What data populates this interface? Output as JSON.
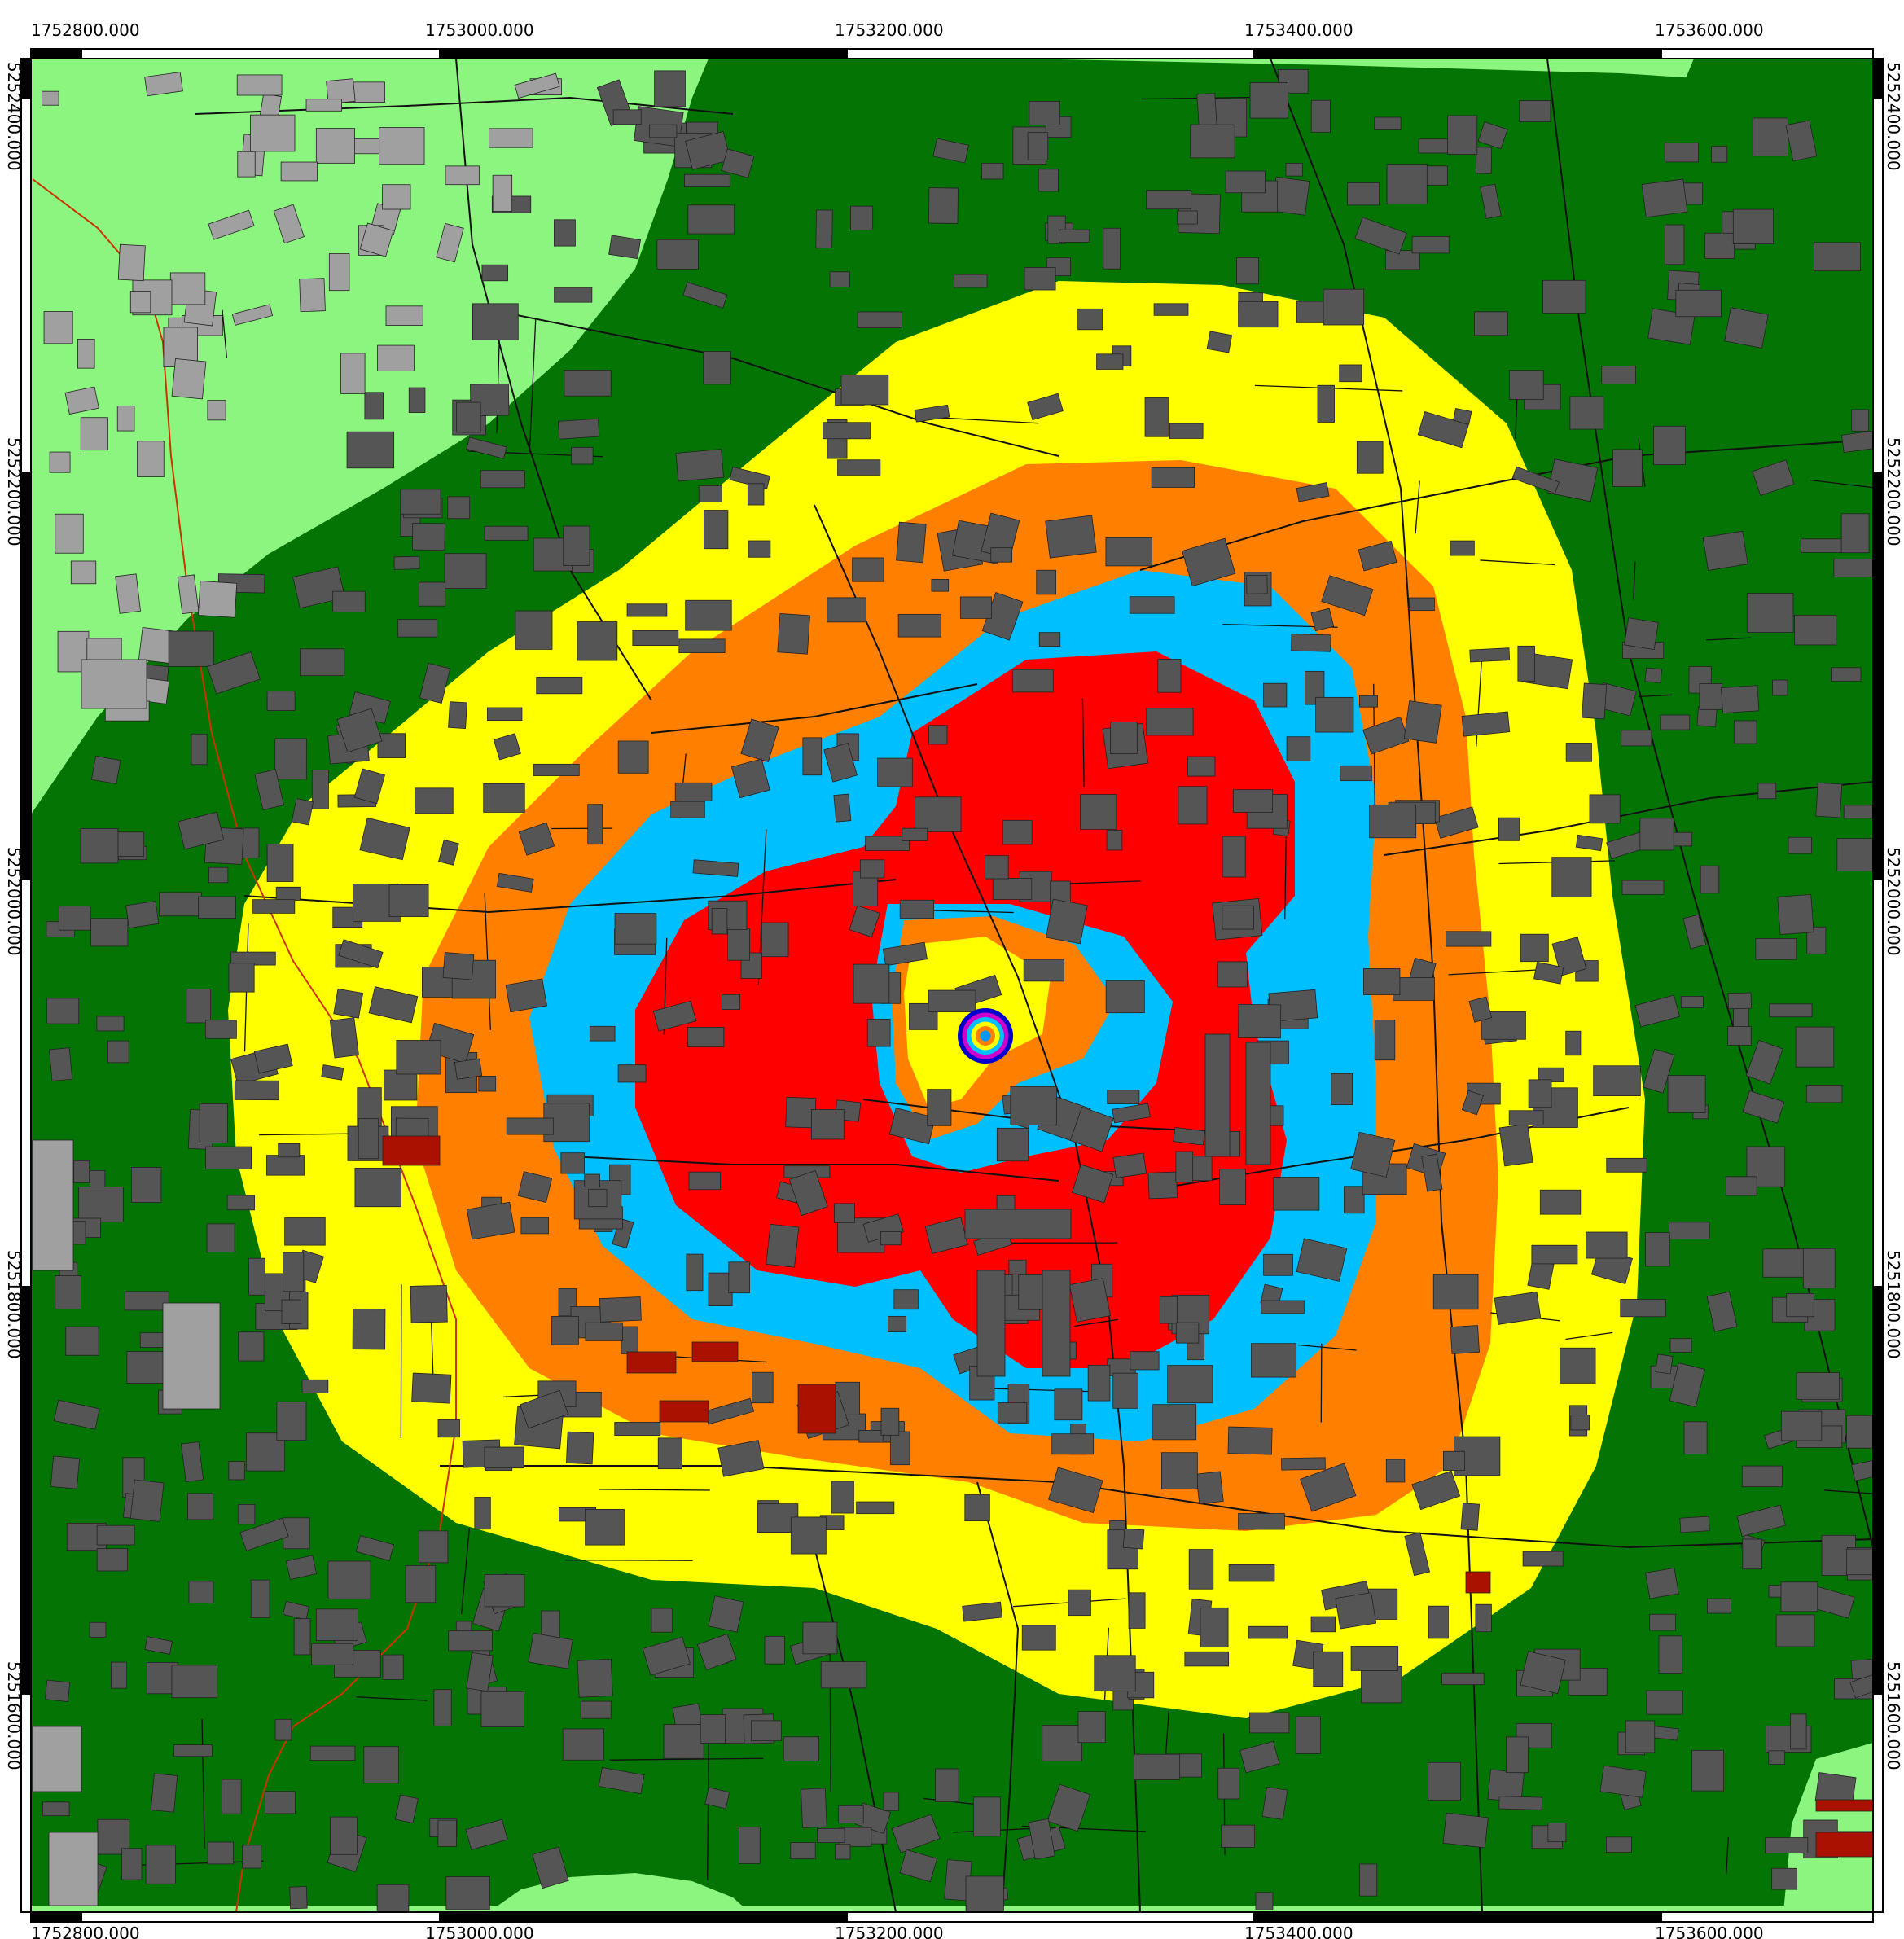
{
  "map": {
    "colors": {
      "light_green": "#8cf57f",
      "dark_green": "#047405",
      "yellow": "#ffff00",
      "orange": "#ff7f00",
      "cyan": "#00bfff",
      "red": "#ff0000",
      "building_inside": "#555555",
      "building_outside": "#a0a0a0",
      "building_highlight": "#aa1100",
      "frame": "#000000",
      "road_line": "#111111",
      "river_line": "#cc3300"
    },
    "x_labels_top": [
      "1752800.000",
      "1753000.000",
      "1753200.000",
      "1753400.000",
      "1753600.000"
    ],
    "x_labels_bottom": [
      "1752800.000",
      "1753000.000",
      "1753200.000",
      "1753400.000",
      "1753600.000"
    ],
    "y_labels_left": [
      "5252400.000",
      "5252200.000",
      "5252000.000",
      "5251800.000",
      "5251600.000"
    ],
    "y_labels_right": [
      "5252400.000",
      "5252200.000",
      "5252000.000",
      "5251800.000",
      "5251600.000"
    ],
    "marker_icon": "concentric-rings-icon",
    "marker_ring_colors": [
      "#0000cc",
      "#cc00cc",
      "#00bfff",
      "#ffff00",
      "#ff7f00",
      "#0099ff"
    ]
  }
}
